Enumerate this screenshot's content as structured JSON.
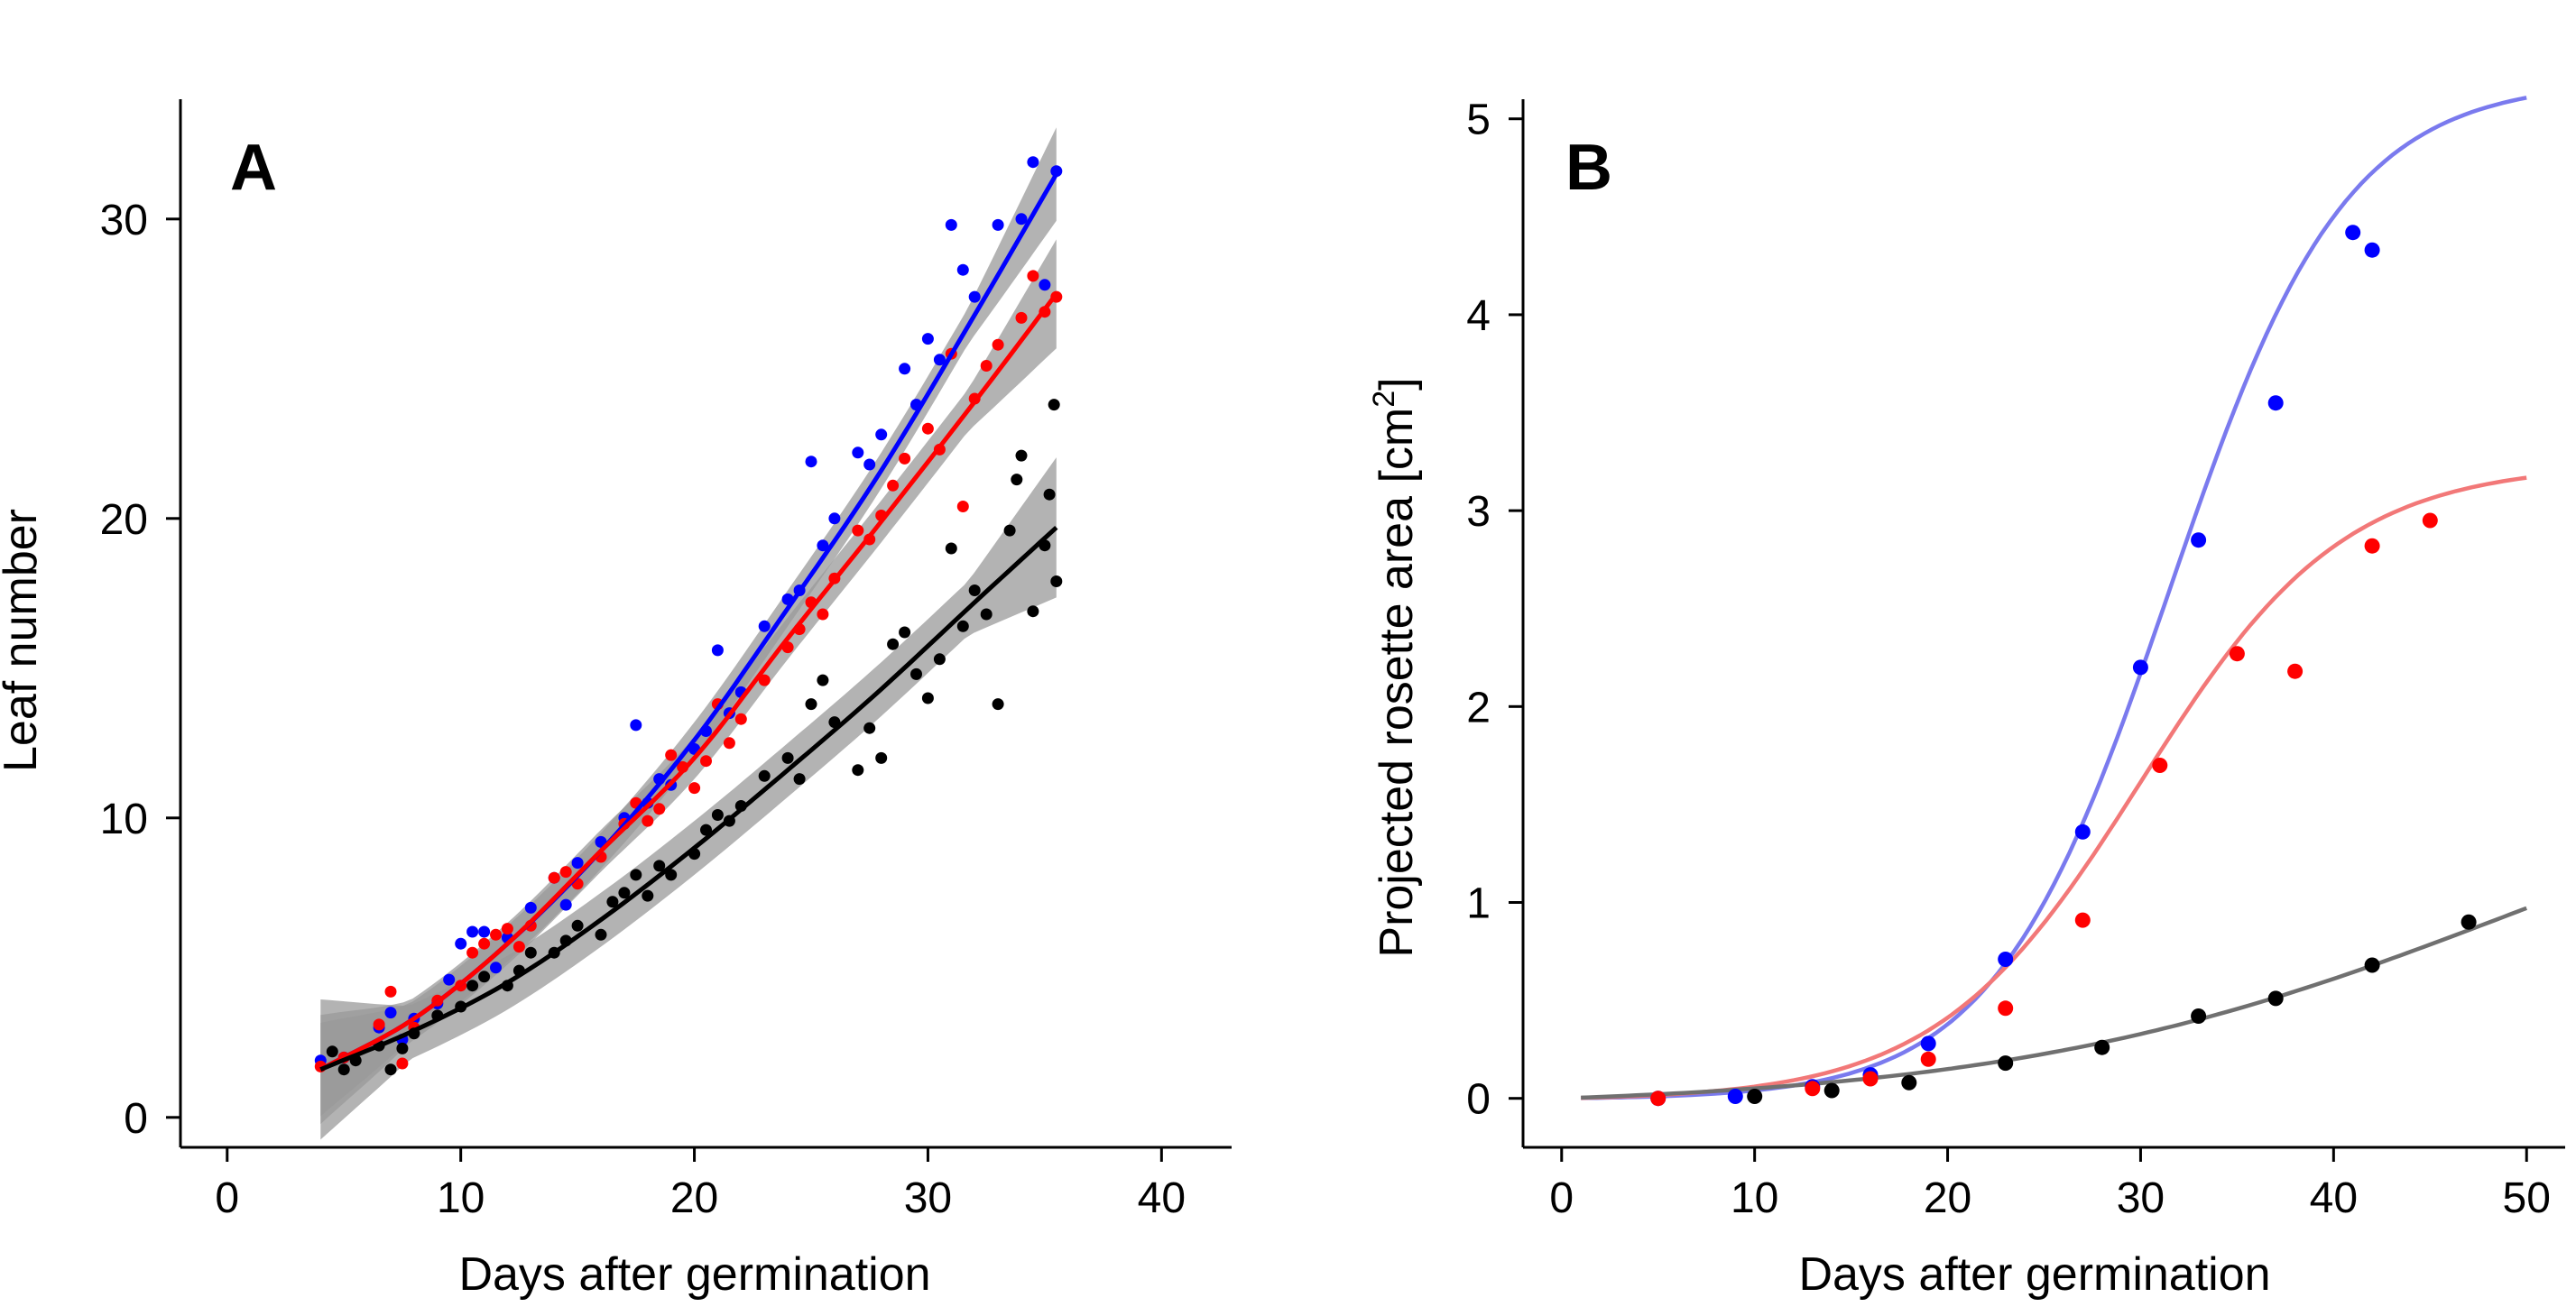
{
  "chart_data": [
    {
      "panel": "A",
      "type": "scatter",
      "xlabel": "Days after germination",
      "ylabel": "Leaf number",
      "xlim": [
        -2,
        43
      ],
      "ylim": [
        -1,
        34
      ],
      "xticks": [
        0,
        10,
        20,
        30,
        40
      ],
      "yticks": [
        0,
        10,
        20,
        30
      ],
      "grid": false,
      "legend": "none",
      "series": [
        {
          "color": "#0000ff",
          "fit": {
            "x": [
              4,
              8,
              12,
              16,
              20,
              24,
              28,
              32,
              35.5
            ],
            "y": [
              1.6,
              3.3,
              5.8,
              8.9,
              12.6,
              17.0,
              21.6,
              26.8,
              31.5
            ],
            "band": 0.6
          },
          "points": [
            [
              4,
              1.9
            ],
            [
              5,
              2.0
            ],
            [
              6.5,
              3.0
            ],
            [
              7,
              3.5
            ],
            [
              7.5,
              2.6
            ],
            [
              8,
              3.3
            ],
            [
              9,
              3.8
            ],
            [
              9.5,
              4.6
            ],
            [
              10,
              5.8
            ],
            [
              10.5,
              6.2
            ],
            [
              11,
              6.2
            ],
            [
              11.5,
              5.0
            ],
            [
              12,
              6.0
            ],
            [
              13,
              7.0
            ],
            [
              14,
              8.0
            ],
            [
              14.5,
              7.1
            ],
            [
              15,
              8.5
            ],
            [
              16,
              9.2
            ],
            [
              17,
              10.0
            ],
            [
              17.5,
              13.1
            ],
            [
              18,
              10.5
            ],
            [
              18.5,
              11.3
            ],
            [
              19,
              11.1
            ],
            [
              20,
              12.3
            ],
            [
              20.5,
              12.9
            ],
            [
              21,
              15.6
            ],
            [
              21.5,
              13.5
            ],
            [
              22,
              14.2
            ],
            [
              23,
              16.4
            ],
            [
              24,
              17.3
            ],
            [
              24.5,
              17.6
            ],
            [
              25,
              21.9
            ],
            [
              25.5,
              19.1
            ],
            [
              26,
              20.0
            ],
            [
              27,
              22.2
            ],
            [
              27.5,
              21.8
            ],
            [
              28,
              22.8
            ],
            [
              29,
              25.0
            ],
            [
              29.5,
              23.8
            ],
            [
              30,
              26.0
            ],
            [
              30.5,
              25.3
            ],
            [
              31,
              29.8
            ],
            [
              31.5,
              28.3
            ],
            [
              32,
              27.4
            ],
            [
              33,
              29.8
            ],
            [
              34,
              30.0
            ],
            [
              34.5,
              31.9
            ],
            [
              35,
              27.8
            ],
            [
              35.5,
              31.6
            ]
          ]
        },
        {
          "color": "#ff0000",
          "fit": {
            "x": [
              4,
              8,
              12,
              16,
              20,
              24,
              28,
              32,
              35.5
            ],
            "y": [
              1.6,
              3.3,
              5.8,
              8.9,
              12.0,
              16.0,
              19.9,
              23.9,
              27.5
            ],
            "band": 0.7
          },
          "points": [
            [
              4,
              1.7
            ],
            [
              5,
              2.0
            ],
            [
              6.5,
              3.1
            ],
            [
              7,
              4.2
            ],
            [
              7.5,
              1.8
            ],
            [
              8,
              3.0
            ],
            [
              9,
              3.9
            ],
            [
              10,
              4.4
            ],
            [
              10.5,
              5.5
            ],
            [
              11,
              5.8
            ],
            [
              11.5,
              6.1
            ],
            [
              12,
              6.3
            ],
            [
              12.5,
              5.7
            ],
            [
              13,
              6.4
            ],
            [
              14,
              8.0
            ],
            [
              14.5,
              8.2
            ],
            [
              15,
              7.8
            ],
            [
              16,
              8.7
            ],
            [
              17,
              9.8
            ],
            [
              17.5,
              10.5
            ],
            [
              18,
              9.9
            ],
            [
              18.5,
              10.3
            ],
            [
              19,
              12.1
            ],
            [
              19.5,
              11.7
            ],
            [
              20,
              11.0
            ],
            [
              20.5,
              11.9
            ],
            [
              21,
              13.8
            ],
            [
              21.5,
              12.5
            ],
            [
              22,
              13.3
            ],
            [
              23,
              14.6
            ],
            [
              24,
              15.7
            ],
            [
              24.5,
              16.3
            ],
            [
              25,
              17.2
            ],
            [
              25.5,
              16.8
            ],
            [
              26,
              18.0
            ],
            [
              27,
              19.6
            ],
            [
              27.5,
              19.3
            ],
            [
              28,
              20.1
            ],
            [
              28.5,
              21.1
            ],
            [
              29,
              22.0
            ],
            [
              30,
              23.0
            ],
            [
              30.5,
              22.3
            ],
            [
              31,
              25.5
            ],
            [
              31.5,
              20.4
            ],
            [
              32,
              24.0
            ],
            [
              32.5,
              25.1
            ],
            [
              33,
              25.8
            ],
            [
              34,
              26.7
            ],
            [
              34.5,
              28.1
            ],
            [
              35,
              26.9
            ],
            [
              35.5,
              27.4
            ]
          ]
        },
        {
          "color": "#000000",
          "fit": {
            "x": [
              4,
              8,
              12,
              16,
              20,
              24,
              28,
              32,
              35.5
            ],
            "y": [
              1.6,
              2.9,
              4.5,
              6.6,
              9.0,
              11.6,
              14.3,
              17.2,
              19.7
            ],
            "band": 0.9
          },
          "points": [
            [
              4.5,
              2.2
            ],
            [
              5,
              1.6
            ],
            [
              5.5,
              1.9
            ],
            [
              6.5,
              2.4
            ],
            [
              7,
              1.6
            ],
            [
              7.5,
              2.3
            ],
            [
              8,
              2.8
            ],
            [
              9,
              3.4
            ],
            [
              10,
              3.7
            ],
            [
              10.5,
              4.4
            ],
            [
              11,
              4.7
            ],
            [
              12,
              4.4
            ],
            [
              12.5,
              4.9
            ],
            [
              13,
              5.5
            ],
            [
              14,
              5.5
            ],
            [
              14.5,
              5.9
            ],
            [
              15,
              6.4
            ],
            [
              16,
              6.1
            ],
            [
              16.5,
              7.2
            ],
            [
              17,
              7.5
            ],
            [
              17.5,
              8.1
            ],
            [
              18,
              7.4
            ],
            [
              18.5,
              8.4
            ],
            [
              19,
              8.1
            ],
            [
              20,
              8.8
            ],
            [
              20.5,
              9.6
            ],
            [
              21,
              10.1
            ],
            [
              21.5,
              9.9
            ],
            [
              22,
              10.4
            ],
            [
              23,
              11.4
            ],
            [
              24,
              12.0
            ],
            [
              24.5,
              11.3
            ],
            [
              25,
              13.8
            ],
            [
              25.5,
              14.6
            ],
            [
              26,
              13.2
            ],
            [
              27,
              11.6
            ],
            [
              27.5,
              13.0
            ],
            [
              28,
              12.0
            ],
            [
              28.5,
              15.8
            ],
            [
              29,
              16.2
            ],
            [
              29.5,
              14.8
            ],
            [
              30,
              14.0
            ],
            [
              30.5,
              15.3
            ],
            [
              31,
              19.0
            ],
            [
              31.5,
              16.4
            ],
            [
              32,
              17.6
            ],
            [
              32.5,
              16.8
            ],
            [
              33,
              13.8
            ],
            [
              33.5,
              19.6
            ],
            [
              34,
              22.1
            ],
            [
              34.5,
              16.9
            ],
            [
              35,
              19.1
            ],
            [
              35.5,
              17.9
            ],
            [
              35.2,
              20.8
            ],
            [
              35.4,
              23.8
            ],
            [
              33.8,
              21.3
            ]
          ]
        }
      ]
    },
    {
      "panel": "B",
      "type": "scatter",
      "xlabel": "Days after germination",
      "ylabel": "Projected rosette area [cm",
      "ylabel_sup": "2",
      "ylabel_end": "]",
      "xlim": [
        -2,
        52
      ],
      "ylim": [
        -0.25,
        5.1
      ],
      "xticks": [
        0,
        10,
        20,
        30,
        40,
        50
      ],
      "yticks": [
        0,
        1,
        2,
        3,
        4,
        5
      ],
      "grid": false,
      "legend": "none",
      "series": [
        {
          "color": "#0000ff",
          "line_color": "#7a7aee",
          "curve": {
            "A": 5.2,
            "k": 0.22,
            "x0": 31.5
          },
          "points": [
            [
              5,
              0.0
            ],
            [
              9,
              0.01
            ],
            [
              13,
              0.06
            ],
            [
              16,
              0.12
            ],
            [
              19,
              0.28
            ],
            [
              23,
              0.71
            ],
            [
              27,
              1.36
            ],
            [
              30,
              2.2
            ],
            [
              33,
              2.85
            ],
            [
              37,
              3.55
            ],
            [
              41,
              4.42
            ],
            [
              42,
              4.33
            ]
          ]
        },
        {
          "color": "#ff0000",
          "line_color": "#f27878",
          "curve": {
            "A": 3.25,
            "k": 0.19,
            "x0": 30.0
          },
          "points": [
            [
              5,
              0.0
            ],
            [
              13,
              0.05
            ],
            [
              16,
              0.1
            ],
            [
              19,
              0.2
            ],
            [
              23,
              0.46
            ],
            [
              27,
              0.91
            ],
            [
              31,
              1.7
            ],
            [
              35,
              2.27
            ],
            [
              38,
              2.18
            ],
            [
              42,
              2.82
            ],
            [
              45,
              2.95
            ]
          ]
        },
        {
          "color": "#000000",
          "line_color": "#707070",
          "curve": {
            "A": 2.0,
            "k": 0.075,
            "x0": 49.5
          },
          "points": [
            [
              10,
              0.01
            ],
            [
              14,
              0.04
            ],
            [
              18,
              0.08
            ],
            [
              23,
              0.18
            ],
            [
              28,
              0.26
            ],
            [
              33,
              0.42
            ],
            [
              37,
              0.51
            ],
            [
              42,
              0.68
            ],
            [
              47,
              0.9
            ]
          ]
        }
      ]
    }
  ]
}
